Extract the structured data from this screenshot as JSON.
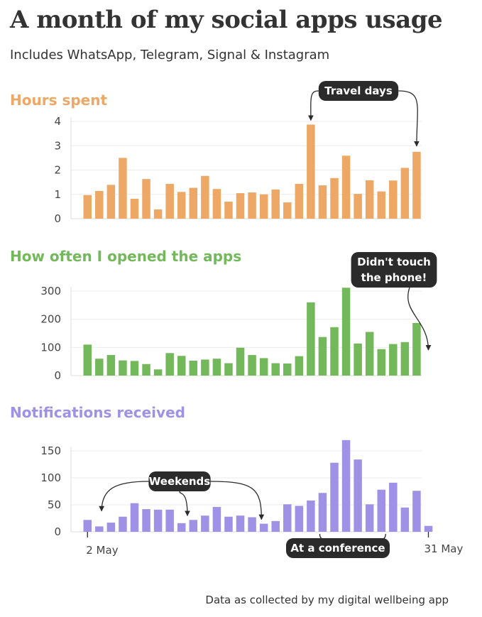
{
  "title": "A month of my social apps usage",
  "subtitle": "Includes WhatsApp, Telegram, Signal & Instagram",
  "caption": "Data as collected by my digital wellbeing app",
  "chart_data": [
    {
      "type": "bar",
      "title": "Hours spent",
      "color": "#eda866",
      "ylim": [
        0,
        4
      ],
      "yticks": [
        0,
        1,
        2,
        3,
        4
      ],
      "xlabel": "",
      "ylabel": "",
      "values": [
        0.97,
        1.14,
        1.39,
        2.5,
        0.82,
        1.63,
        0.38,
        1.43,
        1.1,
        1.27,
        1.76,
        1.22,
        0.7,
        1.05,
        1.08,
        1.0,
        1.2,
        0.67,
        1.43,
        3.87,
        1.37,
        1.67,
        2.59,
        1.02,
        1.58,
        1.12,
        1.57,
        2.09,
        2.75
      ],
      "annotations": [
        {
          "text": "Travel days",
          "days": [
            20,
            29
          ]
        }
      ]
    },
    {
      "type": "bar",
      "title": "How often I opened the apps",
      "color": "#73b85b",
      "ylim": [
        0,
        300
      ],
      "yticks": [
        0,
        100,
        200,
        300
      ],
      "xlabel": "",
      "ylabel": "",
      "values": [
        110,
        60,
        73,
        54,
        52,
        41,
        22,
        80,
        70,
        53,
        57,
        60,
        44,
        99,
        73,
        62,
        44,
        43,
        69,
        260,
        137,
        172,
        312,
        114,
        155,
        94,
        112,
        119,
        187
      ],
      "annotations": [
        {
          "text": "Didn't touch\nthe phone!",
          "days": [
            30
          ]
        }
      ]
    },
    {
      "type": "bar",
      "title": "Notifications received",
      "color": "#9f91e5",
      "ylim": [
        0,
        150
      ],
      "yticks": [
        0,
        50,
        100,
        150
      ],
      "xlabel": "",
      "ylabel": "",
      "values": [
        22,
        10,
        17,
        28,
        53,
        42,
        41,
        41,
        16,
        22,
        30,
        46,
        28,
        30,
        27,
        15,
        20,
        51,
        48,
        58,
        72,
        128,
        170,
        134,
        51,
        78,
        91,
        45,
        76,
        11
      ],
      "x_tick_labels": [
        "2 May",
        "31 May"
      ],
      "annotations": [
        {
          "text": "Weekends",
          "days": [
            4,
            11,
            18
          ]
        },
        {
          "text": "At a conference",
          "days": [
            21,
            26
          ]
        }
      ]
    }
  ]
}
